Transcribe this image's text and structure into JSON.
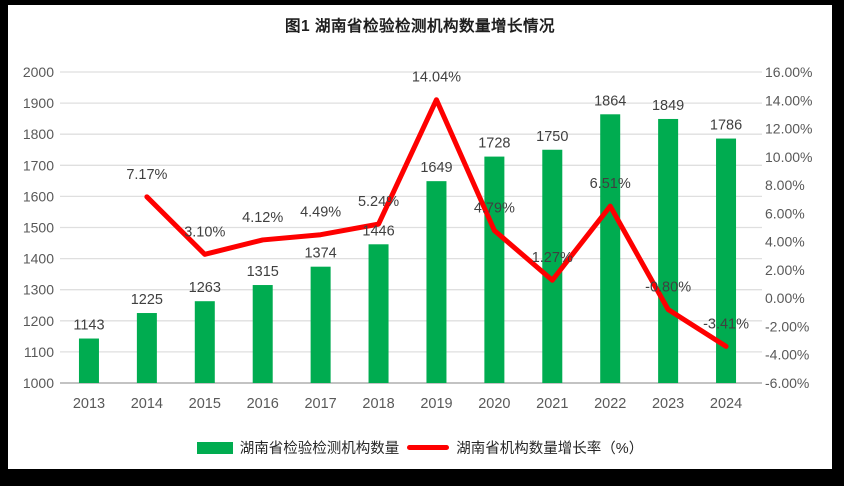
{
  "title": "图1 湖南省检验检测机构数量增长情况",
  "colors": {
    "bar": "#00AC50",
    "line": "#FE0000",
    "grid": "#DFDFDF",
    "axis_line": "#C3C3C3",
    "tick_text": "#595959",
    "data_label_text": "#404040",
    "frame": "#000000",
    "panel": "#FFFFFF"
  },
  "chart_data": {
    "type": "bar+line combo",
    "title": "图1 湖南省检验检测机构数量增长情况",
    "categories": [
      "2013",
      "2014",
      "2015",
      "2016",
      "2017",
      "2018",
      "2019",
      "2020",
      "2021",
      "2022",
      "2023",
      "2024"
    ],
    "series": [
      {
        "name": "湖南省检验检测机构数量",
        "type": "bar",
        "axis": "left",
        "values": [
          1143,
          1225,
          1263,
          1315,
          1374,
          1446,
          1649,
          1728,
          1750,
          1864,
          1849,
          1786
        ],
        "labels": [
          "1143",
          "1225",
          "1263",
          "1315",
          "1374",
          "1446",
          "1649",
          "1728",
          "1750",
          "1864",
          "1849",
          "1786"
        ]
      },
      {
        "name": "湖南省机构数量增长率（%）",
        "type": "line",
        "axis": "right",
        "values": [
          null,
          7.17,
          3.1,
          4.12,
          4.49,
          5.24,
          14.04,
          4.79,
          1.27,
          6.51,
          -0.8,
          -3.41
        ],
        "labels": [
          "",
          "7.17%",
          "3.10%",
          "4.12%",
          "4.49%",
          "5.24%",
          "14.04%",
          "4.79%",
          "1.27%",
          "6.51%",
          "-0.80%",
          "-3.41%"
        ]
      }
    ],
    "left_axis": {
      "min": 1000,
      "max": 2000,
      "step": 100,
      "ticks": [
        "2000",
        "1900",
        "1800",
        "1700",
        "1600",
        "1500",
        "1400",
        "1300",
        "1200",
        "1100",
        "1000"
      ]
    },
    "right_axis": {
      "min": -6,
      "max": 16,
      "step": 2,
      "ticks": [
        "16.00%",
        "14.00%",
        "12.00%",
        "10.00%",
        "8.00%",
        "6.00%",
        "4.00%",
        "2.00%",
        "0.00%",
        "-2.00%",
        "-4.00%",
        "-6.00%"
      ]
    },
    "grid": "horizontal",
    "legend_position": "bottom",
    "legend": [
      {
        "label": "湖南省检验检测机构数量",
        "swatch": "bar"
      },
      {
        "label": "湖南省机构数量增长率（%）",
        "swatch": "line"
      }
    ]
  }
}
